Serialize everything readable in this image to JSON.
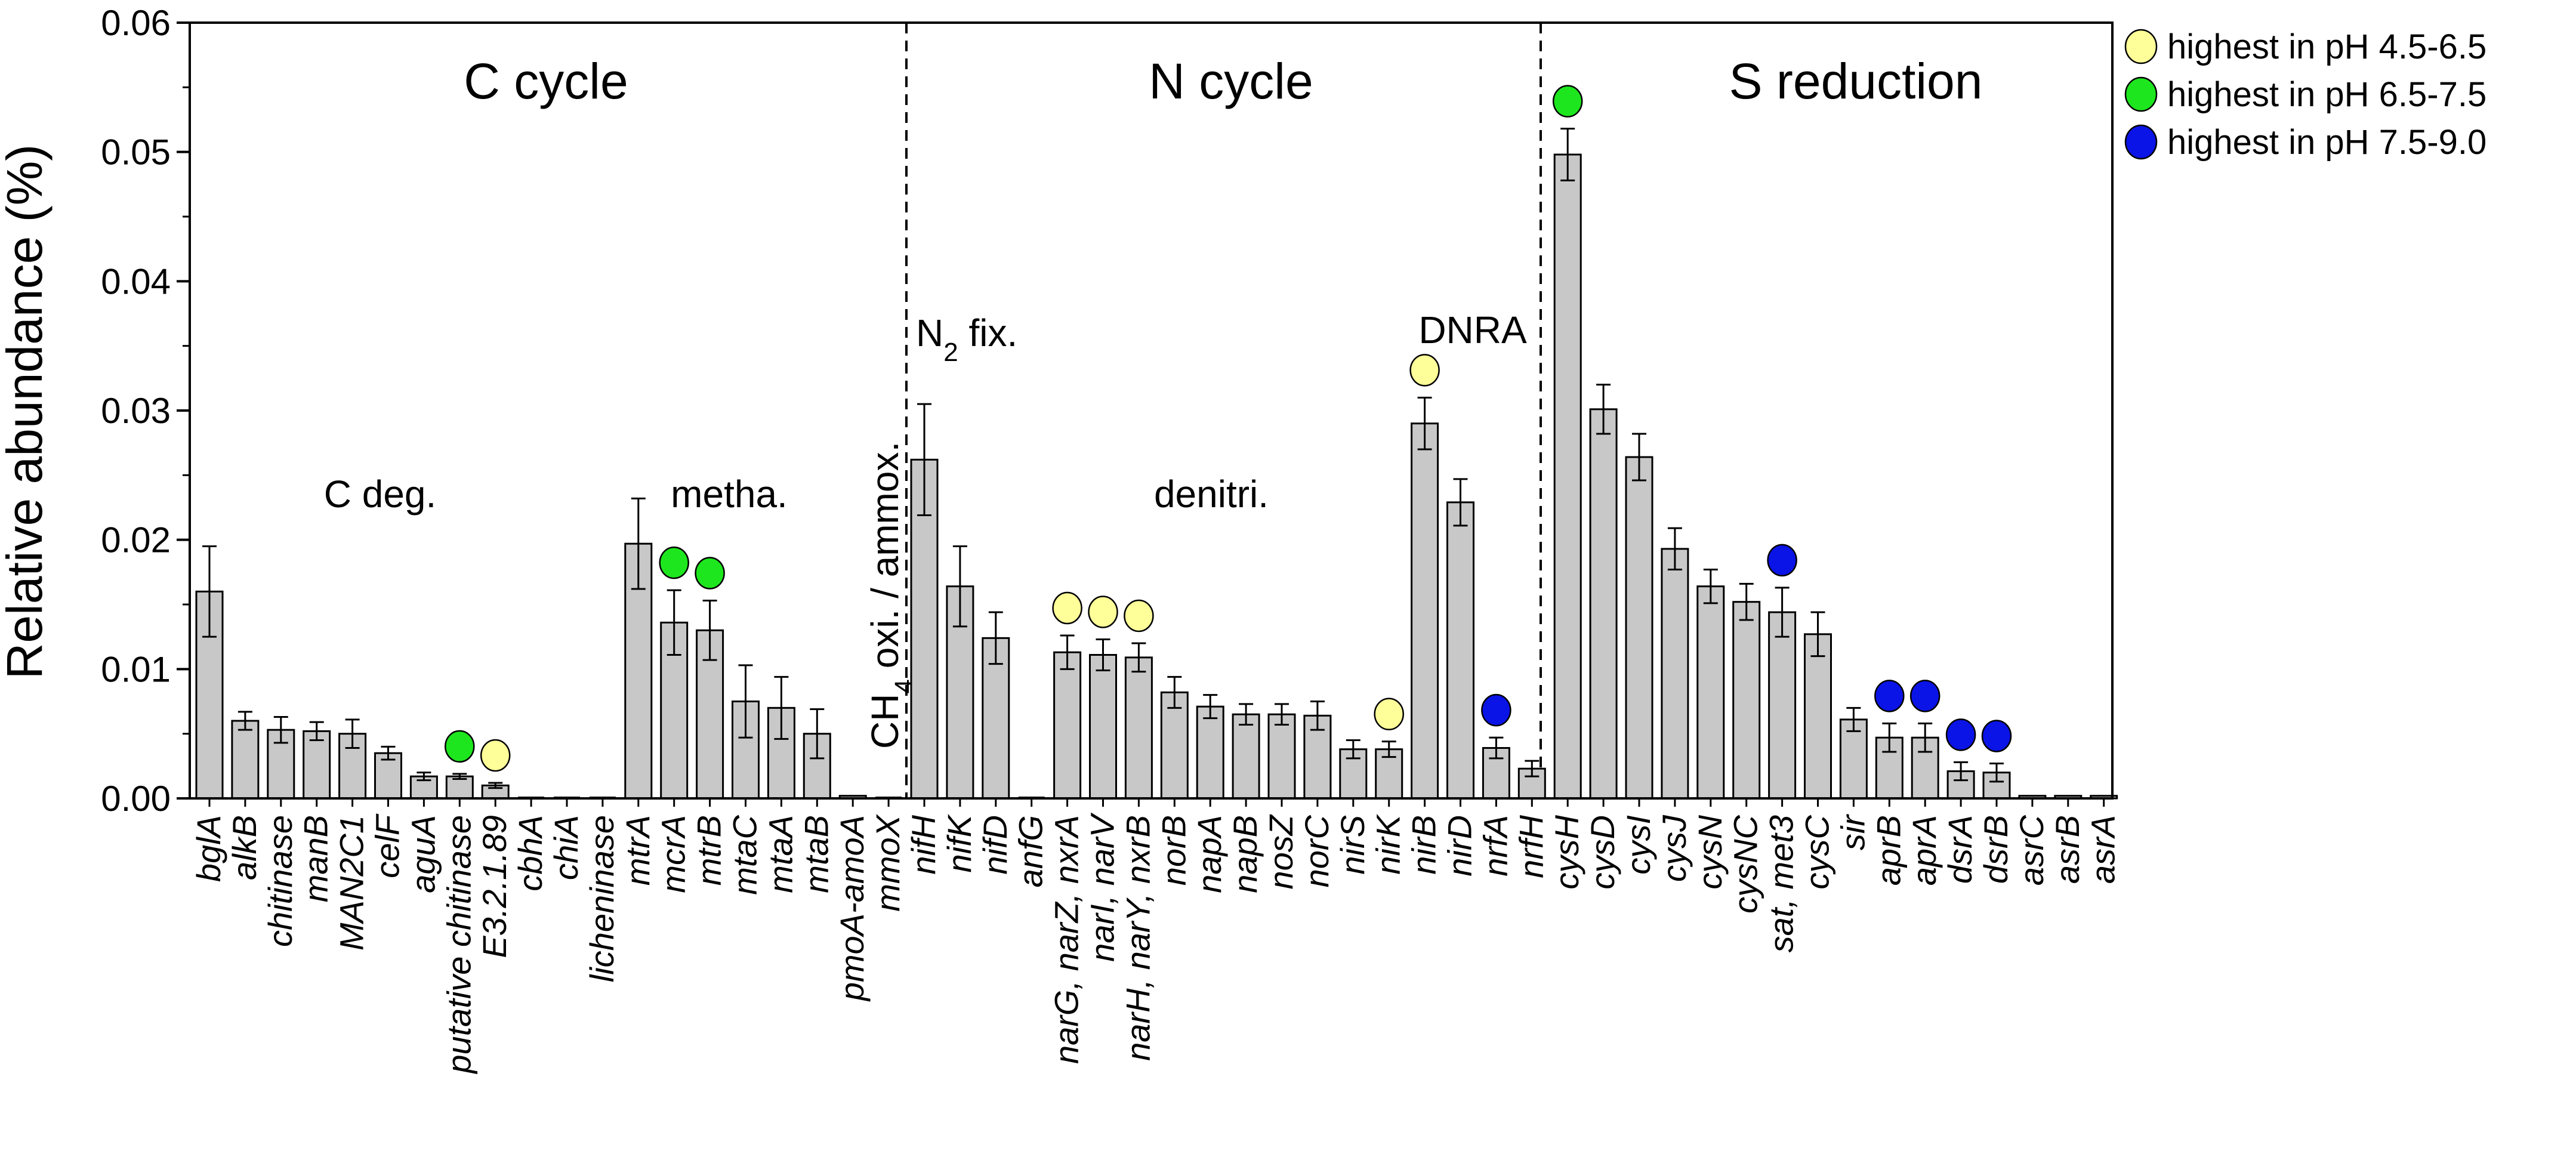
{
  "colors": {
    "bar": "#c8c8c8",
    "ph_4_5_6_5": "#ffff99",
    "ph_6_5_7_5": "#1ee61e",
    "ph_7_5_9_0": "#0a14e6"
  },
  "chart_data": {
    "type": "bar",
    "title": "",
    "xlabel": "",
    "ylabel": "Relative abundance (%)",
    "ylim": [
      0,
      0.06
    ],
    "yticks": [
      "0.00",
      "0.01",
      "0.02",
      "0.03",
      "0.04",
      "0.05",
      "0.06"
    ],
    "categories": [
      "bglA",
      "alkB",
      "chitinase",
      "manB",
      "MAN2C1",
      "celF",
      "aguA",
      "putative chitinase",
      "E3.2.1.89",
      "cbhA",
      "chiA",
      "licheninase",
      "mtrA",
      "mcrA",
      "mtrB",
      "mtaC",
      "mtaA",
      "mtaB",
      "pmoA-amoA",
      "mmoX",
      "nifH",
      "nifK",
      "nifD",
      "anfG",
      "narG, narZ, nxrA",
      "narI, narV",
      "narH, narY, nxrB",
      "norB",
      "napA",
      "napB",
      "nosZ",
      "norC",
      "nirS",
      "nirK",
      "nirB",
      "nirD",
      "nrfA",
      "nrfH",
      "cysH",
      "cysD",
      "cysI",
      "cysJ",
      "cysN",
      "cysNC",
      "sat, met3",
      "cysC",
      "sir",
      "aprB",
      "aprA",
      "dsrA",
      "dsrB",
      "asrC",
      "asrB",
      "asrA"
    ],
    "values": [
      0.016,
      0.006,
      0.0053,
      0.0052,
      0.005,
      0.0035,
      0.0017,
      0.0017,
      0.001,
      0.0,
      0.0,
      0.0,
      0.0197,
      0.0136,
      0.013,
      0.0075,
      0.007,
      0.005,
      0.0002,
      0.0,
      0.0262,
      0.0164,
      0.0124,
      0.0,
      0.0113,
      0.0111,
      0.0109,
      0.0082,
      0.0071,
      0.0065,
      0.0065,
      0.0064,
      0.0038,
      0.0038,
      0.029,
      0.0229,
      0.0039,
      0.0023,
      0.0498,
      0.0301,
      0.0264,
      0.0193,
      0.0164,
      0.0152,
      0.0144,
      0.0127,
      0.0061,
      0.0047,
      0.0047,
      0.0021,
      0.002,
      0.0002,
      0.0002,
      0.0002
    ],
    "errors": [
      0.0035,
      0.0007,
      0.001,
      0.0007,
      0.0011,
      0.0005,
      0.0003,
      0.0002,
      0.0002,
      0.0,
      0.0,
      0.0,
      0.0035,
      0.0025,
      0.0023,
      0.0028,
      0.0024,
      0.0019,
      0.0,
      0.0,
      0.0043,
      0.0031,
      0.002,
      0.0,
      0.0013,
      0.0012,
      0.0011,
      0.0012,
      0.0009,
      0.0008,
      0.0008,
      0.0011,
      0.0007,
      0.0006,
      0.002,
      0.0018,
      0.0008,
      0.0006,
      0.002,
      0.0019,
      0.0018,
      0.0016,
      0.0013,
      0.0014,
      0.0019,
      0.0017,
      0.0009,
      0.0011,
      0.0011,
      0.0007,
      0.0007,
      0.0,
      0.0,
      0.0
    ],
    "highlights": [
      {
        "category": "putative chitinase",
        "group": "ph_6_5_7_5"
      },
      {
        "category": "E3.2.1.89",
        "group": "ph_4_5_6_5"
      },
      {
        "category": "mcrA",
        "group": "ph_6_5_7_5"
      },
      {
        "category": "mtrB",
        "group": "ph_6_5_7_5"
      },
      {
        "category": "narG, narZ, nxrA",
        "group": "ph_4_5_6_5"
      },
      {
        "category": "narI, narV",
        "group": "ph_4_5_6_5"
      },
      {
        "category": "narH, narY, nxrB",
        "group": "ph_4_5_6_5"
      },
      {
        "category": "nirK",
        "group": "ph_4_5_6_5"
      },
      {
        "category": "nirB",
        "group": "ph_4_5_6_5"
      },
      {
        "category": "nrfA",
        "group": "ph_7_5_9_0"
      },
      {
        "category": "cysH",
        "group": "ph_6_5_7_5"
      },
      {
        "category": "sat, met3",
        "group": "ph_7_5_9_0"
      },
      {
        "category": "aprB",
        "group": "ph_7_5_9_0"
      },
      {
        "category": "aprA",
        "group": "ph_7_5_9_0"
      },
      {
        "category": "dsrA",
        "group": "ph_7_5_9_0"
      },
      {
        "category": "dsrB",
        "group": "ph_7_5_9_0"
      }
    ],
    "sections": {
      "c_cycle": "C cycle",
      "n_cycle": "N cycle",
      "s_reduction": "S reduction"
    },
    "groups": {
      "c_deg": "C deg.",
      "metha": "metha.",
      "ch4_main": "CH",
      "ch4_sub": "4",
      "ch4_rest": " oxi. / ammox.",
      "n2_main": "N",
      "n2_sub": "2",
      "n2_rest": " fix.",
      "denitri": "denitri.",
      "dnra": "DNRA"
    },
    "legend": [
      {
        "label": "highest in pH 4.5-6.5",
        "group": "ph_4_5_6_5"
      },
      {
        "label": "highest in pH 6.5-7.5",
        "group": "ph_6_5_7_5"
      },
      {
        "label": "highest in pH 7.5-9.0",
        "group": "ph_7_5_9_0"
      }
    ],
    "legend_position": "top-right"
  }
}
